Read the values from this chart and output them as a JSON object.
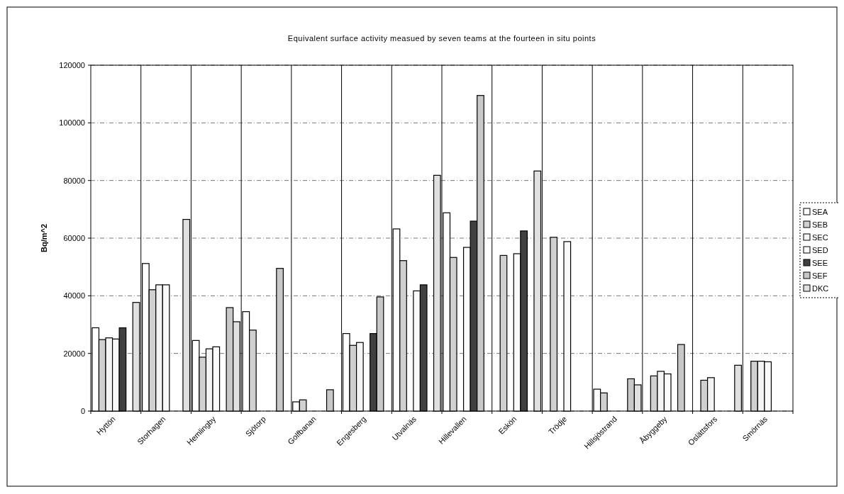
{
  "chart_data": {
    "type": "bar",
    "title": "Equivalent surface activity measued by seven teams at the fourteen in situ points",
    "ylabel": "Bq/m^2",
    "categories": [
      "Hyttön",
      "Storhagen",
      "Hemlingby",
      "Sjötorp",
      "Golfbanan",
      "Engesberg",
      "Utvalnäs",
      "Hillevallen",
      "Eskön",
      "Trödje",
      "Hillsjöstrand",
      "Åbyggeby",
      "Oslättsfors",
      "Smörnäs"
    ],
    "series": [
      {
        "name": "SEA",
        "color": "#ffffff",
        "values": [
          28900,
          51200,
          24500,
          34500,
          3200,
          26900,
          63200,
          68800,
          null,
          null,
          7600,
          null,
          null,
          null
        ]
      },
      {
        "name": "SEB",
        "color": "#d0d0d0",
        "values": [
          24800,
          42100,
          18700,
          28100,
          3900,
          22800,
          52200,
          53300,
          54000,
          60300,
          6300,
          12200,
          10700,
          17300
        ]
      },
      {
        "name": "SEC",
        "color": "#f4f4f4",
        "values": [
          25400,
          43800,
          21600,
          null,
          null,
          23800,
          null,
          null,
          null,
          null,
          null,
          13800,
          11600,
          17300
        ]
      },
      {
        "name": "SED",
        "color": "#fafafa",
        "values": [
          25000,
          43800,
          22300,
          null,
          null,
          null,
          41700,
          56800,
          54600,
          58800,
          null,
          12900,
          null,
          17100
        ]
      },
      {
        "name": "SEE",
        "color": "#404040",
        "values": [
          28900,
          null,
          null,
          null,
          null,
          26900,
          43800,
          65900,
          62500,
          null,
          null,
          null,
          null,
          null
        ]
      },
      {
        "name": "SEF",
        "color": "#c8c8c8",
        "values": [
          null,
          null,
          35900,
          49500,
          7400,
          39600,
          null,
          109500,
          null,
          null,
          11200,
          23100,
          null,
          null
        ]
      },
      {
        "name": "DKC",
        "color": "#e0e0e0",
        "values": [
          37700,
          66500,
          31000,
          null,
          null,
          null,
          81800,
          null,
          83300,
          null,
          9100,
          null,
          15900,
          null
        ]
      }
    ],
    "ylim": [
      0,
      120000
    ],
    "yticks": [
      0,
      20000,
      40000,
      60000,
      80000,
      100000,
      120000
    ],
    "grid": true,
    "legend": "right"
  }
}
